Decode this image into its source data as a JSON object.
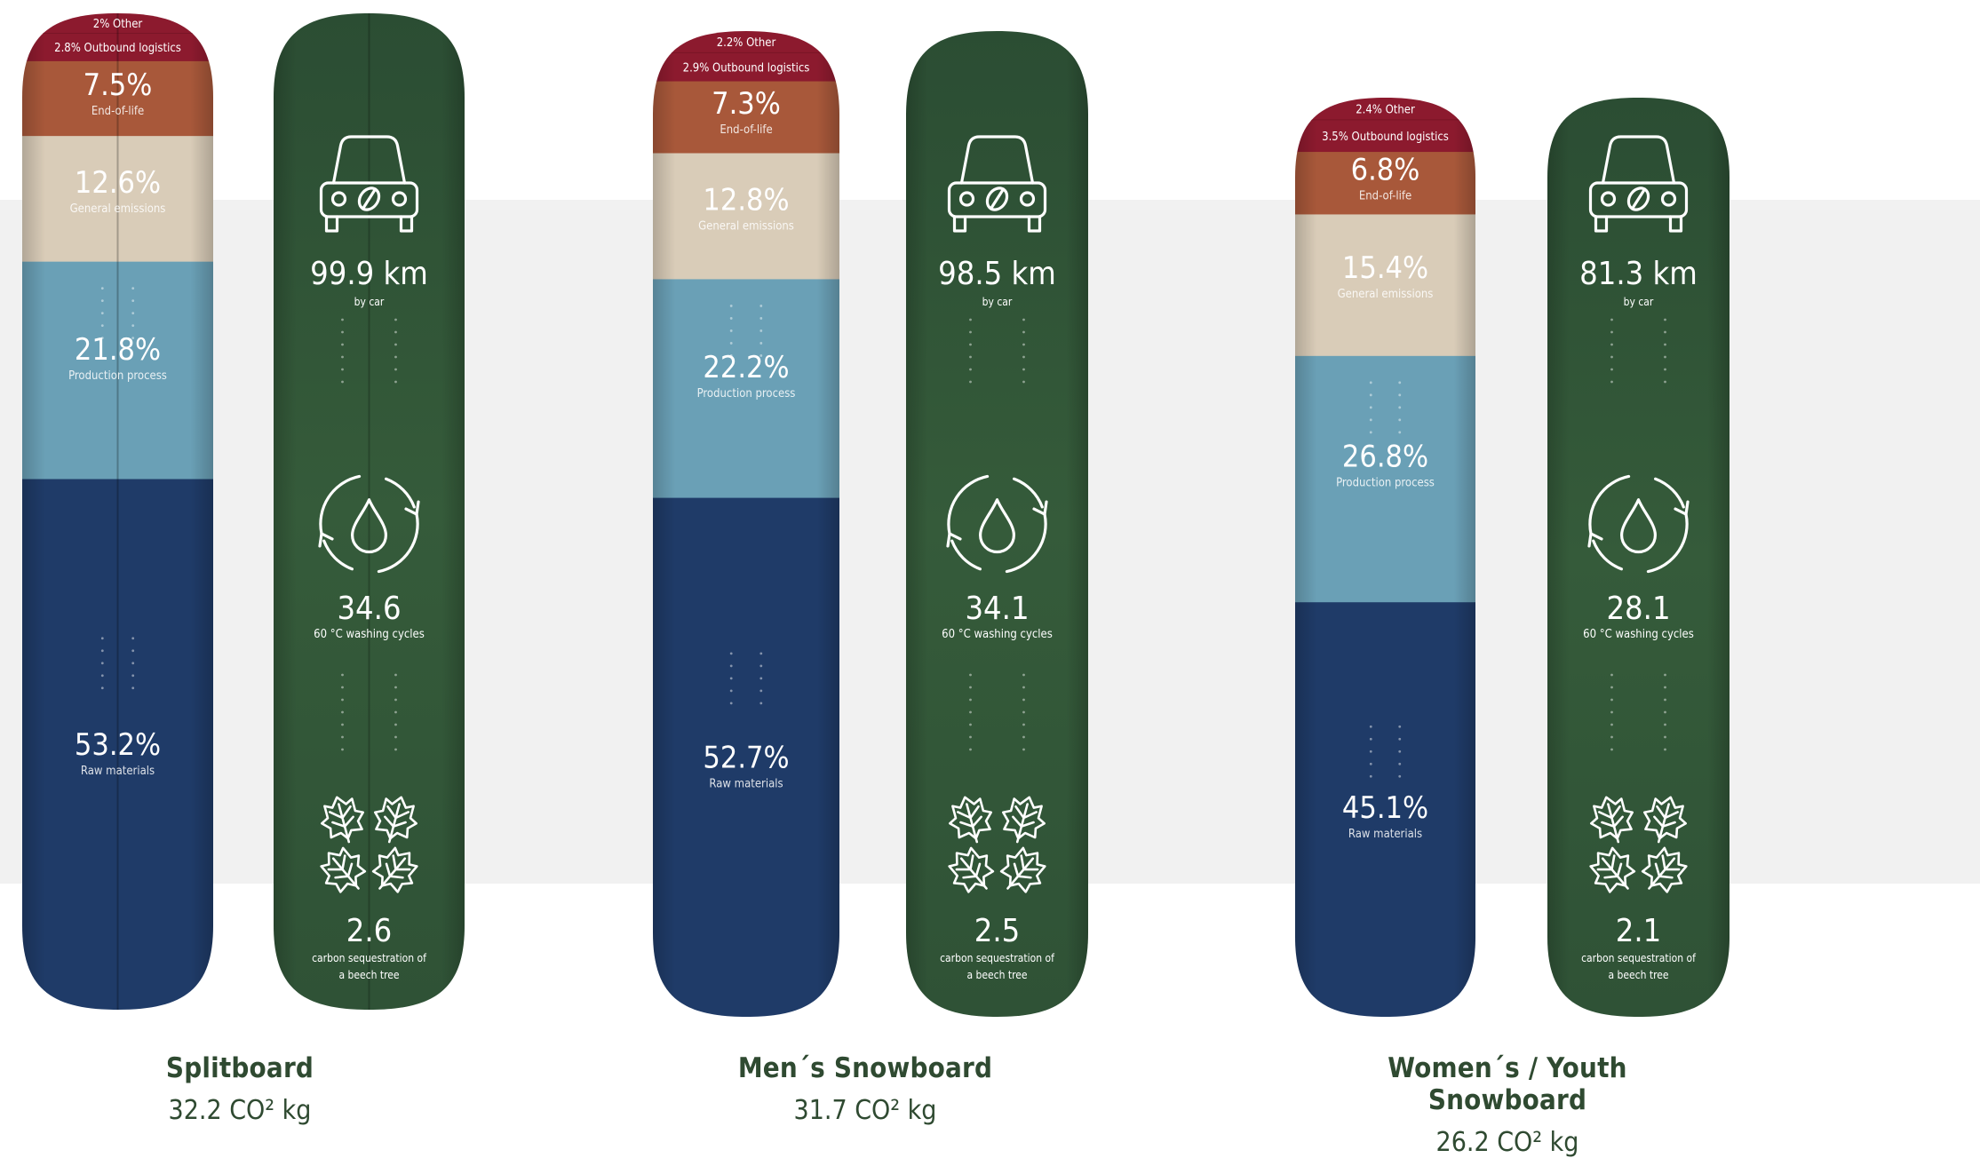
{
  "chart_data": [
    {
      "type": "stacked-bar",
      "title": "Splitboard",
      "total": "32.2 CO² kg",
      "segments": [
        {
          "label": "Other",
          "value": 2,
          "display": "2% Other",
          "color": "#8c1a2e"
        },
        {
          "label": "Outbound logistics",
          "value": 2.8,
          "display": "2.8% Outbound logistics",
          "color": "#8c1a2e"
        },
        {
          "label": "End-of-life",
          "value": 7.5,
          "display": "7.5%",
          "color": "#a8583a"
        },
        {
          "label": "General emissions",
          "value": 12.6,
          "display": "12.6%",
          "color": "#d9ccb8"
        },
        {
          "label": "Production process",
          "value": 21.8,
          "display": "21.8%",
          "color": "#6aa0b6"
        },
        {
          "label": "Raw materials",
          "value": 53.2,
          "display": "53.2%",
          "color": "#1f3b68"
        }
      ],
      "equivalents": [
        {
          "icon": "car-icon",
          "value": "99.9 km",
          "label": "by car"
        },
        {
          "icon": "washing-cycle-icon",
          "value": "34.6",
          "label": "60 °C washing cycles"
        },
        {
          "icon": "leaves-icon",
          "value": "2.6",
          "label": "carbon sequestration of a beech tree"
        }
      ]
    },
    {
      "type": "stacked-bar",
      "title": "Men´s Snowboard",
      "total": "31.7 CO² kg",
      "segments": [
        {
          "label": "Other",
          "value": 2.2,
          "display": "2.2% Other",
          "color": "#8c1a2e"
        },
        {
          "label": "Outbound logistics",
          "value": 2.9,
          "display": "2.9% Outbound logistics",
          "color": "#8c1a2e"
        },
        {
          "label": "End-of-life",
          "value": 7.3,
          "display": "7.3%",
          "color": "#a8583a"
        },
        {
          "label": "General emissions",
          "value": 12.8,
          "display": "12.8%",
          "color": "#d9ccb8"
        },
        {
          "label": "Production process",
          "value": 22.2,
          "display": "22.2%",
          "color": "#6aa0b6"
        },
        {
          "label": "Raw materials",
          "value": 52.7,
          "display": "52.7%",
          "color": "#1f3b68"
        }
      ],
      "equivalents": [
        {
          "icon": "car-icon",
          "value": "98.5 km",
          "label": "by car"
        },
        {
          "icon": "washing-cycle-icon",
          "value": "34.1",
          "label": "60 °C washing cycles"
        },
        {
          "icon": "leaves-icon",
          "value": "2.5",
          "label": "carbon sequestration of a beech tree"
        }
      ]
    },
    {
      "type": "stacked-bar",
      "title": "Women´s / Youth Snowboard",
      "total": "26.2 CO² kg",
      "segments": [
        {
          "label": "Other",
          "value": 2.4,
          "display": "2.4% Other",
          "color": "#8c1a2e"
        },
        {
          "label": "Outbound logistics",
          "value": 3.5,
          "display": "3.5% Outbound logistics",
          "color": "#8c1a2e"
        },
        {
          "label": "End-of-life",
          "value": 6.8,
          "display": "6.8%",
          "color": "#a8583a"
        },
        {
          "label": "General emissions",
          "value": 15.4,
          "display": "15.4%",
          "color": "#d9ccb8"
        },
        {
          "label": "Production process",
          "value": 26.8,
          "display": "26.8%",
          "color": "#6aa0b6"
        },
        {
          "label": "Raw materials",
          "value": 45.1,
          "display": "45.1%",
          "color": "#1f3b68"
        }
      ],
      "equivalents": [
        {
          "icon": "car-icon",
          "value": "81.3 km",
          "label": "by car"
        },
        {
          "icon": "washing-cycle-icon",
          "value": "28.1",
          "label": "60 °C washing cycles"
        },
        {
          "icon": "leaves-icon",
          "value": "2.1",
          "label": "carbon sequestration of a beech tree"
        }
      ]
    }
  ],
  "colors": {
    "topsheet_green": "#2e5134",
    "caption_text": "#2f4a31",
    "band": "#f1f1f1"
  }
}
